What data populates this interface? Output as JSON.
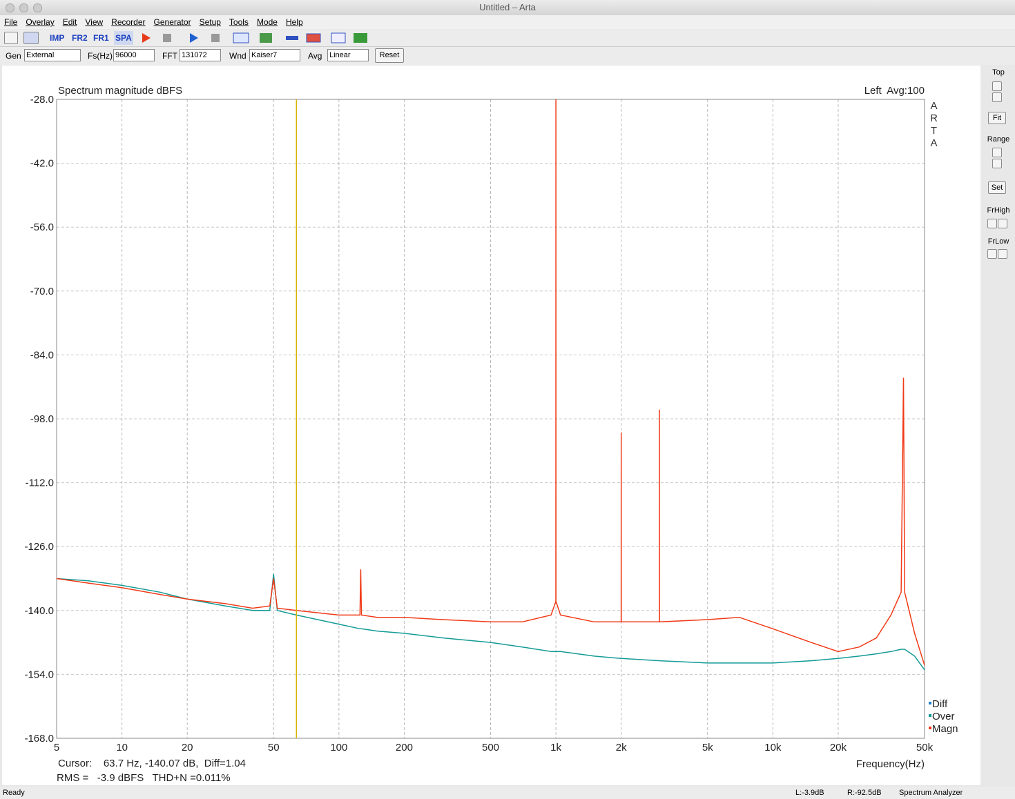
{
  "window": {
    "title": "Untitled – Arta"
  },
  "menu": [
    "File",
    "Overlay",
    "Edit",
    "View",
    "Recorder",
    "Generator",
    "Setup",
    "Tools",
    "Mode",
    "Help"
  ],
  "toolbar": {
    "buttons": [
      "IMP",
      "FR2",
      "FR1",
      "SPA"
    ]
  },
  "controls": {
    "gen_label": "Gen",
    "gen": "External",
    "fs_label": "Fs(Hz)",
    "fs": "96000",
    "fft_label": "FFT",
    "fft": "131072",
    "wnd_label": "Wnd",
    "wnd": "Kaiser7",
    "avg_label": "Avg",
    "avg": "Linear",
    "reset": "Reset"
  },
  "side_panel": {
    "top": "Top",
    "fit": "Fit",
    "range": "Range",
    "set": "Set",
    "frhigh": "FrHigh",
    "frlow": "FrLow"
  },
  "status": {
    "ready": "Ready",
    "left": "L:-3.9dB",
    "right": "R:-92.5dB",
    "mode": "Spectrum Analyzer"
  },
  "chart_data": {
    "type": "line",
    "title": "Spectrum magnitude dBFS",
    "channel": "Left  Avg:100",
    "brand": "ARTA",
    "xlabel": "Frequency(Hz)",
    "cursor_text": "Cursor:    63.7 Hz, -140.07 dB,  Diff=1.04",
    "rms_text": "RMS =   -3.9 dBFS   THD+N =0.011%",
    "cursor": {
      "x": 63.7,
      "color": "#d8b400"
    },
    "xlog": true,
    "grid": true,
    "xlim": [
      5,
      50000
    ],
    "xticks": [
      5,
      10,
      20,
      50,
      100,
      200,
      500,
      {
        "value": 1000,
        "label": "1k"
      },
      {
        "value": 2000,
        "label": "2k"
      },
      {
        "value": 5000,
        "label": "5k"
      },
      {
        "value": 10000,
        "label": "10k"
      },
      {
        "value": 20000,
        "label": "20k"
      },
      {
        "value": 50000,
        "label": "50k"
      }
    ],
    "ylim": [
      -168,
      -28
    ],
    "yticks": [
      {
        "value": -28,
        "label": "-28.0"
      },
      {
        "value": -42,
        "label": "-42.0"
      },
      {
        "value": -56,
        "label": "-56.0"
      },
      {
        "value": -70,
        "label": "-70.0"
      },
      {
        "value": -84,
        "label": "-84.0"
      },
      {
        "value": -98,
        "label": "-98.0"
      },
      {
        "value": -112,
        "label": "-112.0"
      },
      {
        "value": -126,
        "label": "-126.0"
      },
      {
        "value": -140,
        "label": "-140.0"
      },
      {
        "value": -154,
        "label": "-154.0"
      },
      {
        "value": -168,
        "label": "-168.0"
      }
    ],
    "x": [
      5,
      7,
      10,
      15,
      20,
      30,
      40,
      48,
      50,
      52,
      63.7,
      100,
      125,
      126,
      127,
      150,
      200,
      300,
      500,
      700,
      950,
      999,
      1000,
      1001,
      1050,
      1500,
      1999,
      2000,
      2001,
      2999,
      3000,
      3001,
      5000,
      7000,
      10000,
      15000,
      20000,
      25000,
      30000,
      35000,
      39000,
      40000,
      40500,
      45000,
      50000
    ],
    "series": [
      {
        "name": "Diff",
        "color": "#1f7fd0",
        "values": [
          null,
          null,
          null,
          null,
          null,
          null,
          null,
          null,
          null,
          null,
          null,
          null,
          null,
          null,
          null,
          null,
          null,
          null,
          null,
          null,
          null,
          null,
          null,
          null,
          null,
          null,
          null,
          null,
          null,
          null,
          null,
          null,
          null,
          null,
          null,
          null,
          null,
          null,
          null,
          null,
          null,
          null,
          null,
          null,
          null
        ]
      },
      {
        "name": "Over",
        "color": "#139a96",
        "values": [
          -133,
          -133.5,
          -134.5,
          -136,
          -137.5,
          -139,
          -140,
          -140,
          -132,
          -140,
          -141,
          -143,
          -144,
          -144,
          -144,
          -144.5,
          -145,
          -146,
          -147,
          -148,
          -149,
          -149,
          -149,
          -149,
          -149,
          -150,
          -150.5,
          -150.5,
          -150.5,
          -151,
          -151,
          -151,
          -151.5,
          -151.5,
          -151.5,
          -151,
          -150.5,
          -150,
          -149.5,
          -149,
          -148.5,
          -148.5,
          -148.5,
          -150,
          -153
        ]
      },
      {
        "name": "Magn",
        "color": "#f03a17",
        "values": [
          -133,
          -134,
          -135,
          -136.5,
          -137.5,
          -138.5,
          -139.5,
          -139,
          -133,
          -139.5,
          -140,
          -141,
          -141,
          -131,
          -141,
          -141.5,
          -141.5,
          -142,
          -142.5,
          -142.5,
          -141,
          -138,
          -28,
          -138,
          -141,
          -142.5,
          -142.5,
          -101,
          -142.5,
          -142.5,
          -96,
          -142.5,
          -142,
          -141.5,
          -144,
          -147,
          -149,
          -148,
          -146,
          -141,
          -136,
          -89,
          -136,
          -145,
          -152
        ]
      }
    ]
  }
}
